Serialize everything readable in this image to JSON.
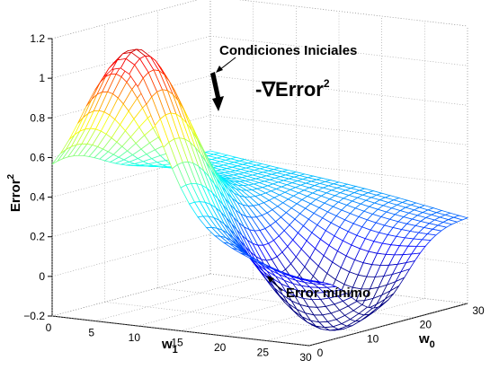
{
  "chart_data": {
    "type": "surface",
    "title": "",
    "zlabel": "Error",
    "zlabel_sup": "2",
    "xlabel": "w",
    "xlabel_sub": "1",
    "ylabel": "w",
    "ylabel_sub": "0",
    "zlim": [
      -0.2,
      1.2
    ],
    "z_ticks": [
      "1.2",
      "1",
      "0.8",
      "0.6",
      "0.4",
      "0.2",
      "0",
      "−0.2"
    ],
    "x_ticks": [
      "0",
      "5",
      "10",
      "15",
      "20",
      "25",
      "30"
    ],
    "y_ticks": [
      "0",
      "10",
      "20",
      "30"
    ],
    "xlim": [
      0,
      30
    ],
    "ylim": [
      0,
      30
    ],
    "colormap": "jet",
    "mesh_style": "wireframe",
    "grid": true,
    "annotations": [
      {
        "id": "initial",
        "text": "Condiciones Iniciales"
      },
      {
        "id": "gradient",
        "text": "-∇Error",
        "sup": "2"
      },
      {
        "id": "minimum",
        "text": "Error mínimo"
      }
    ]
  }
}
